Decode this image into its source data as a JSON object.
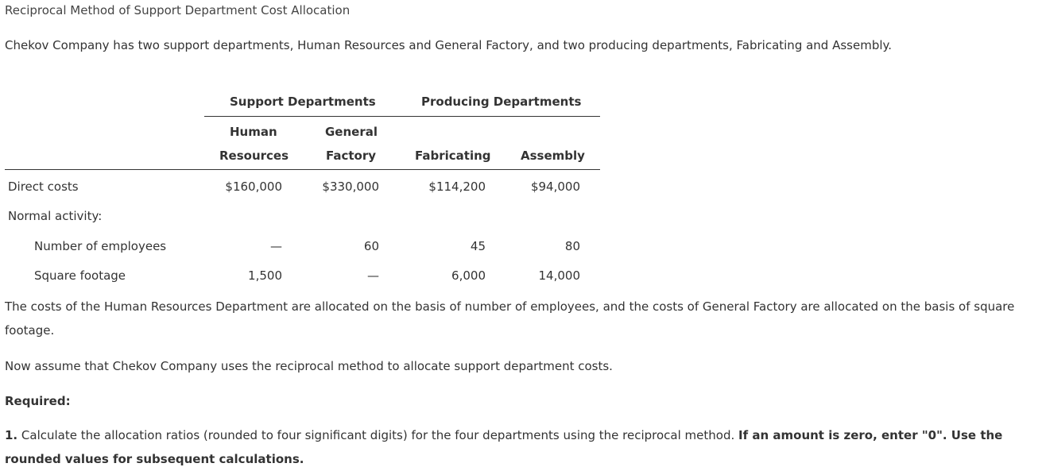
{
  "title": "Reciprocal Method of Support Department Cost Allocation",
  "intro": "Chekov Company has two support departments, Human Resources and General Factory, and two producing departments, Fabricating and Assembly.",
  "table": {
    "group_support": "Support Departments",
    "group_producing": "Producing Departments",
    "col_hr_line1": "Human",
    "col_hr_line2": "Resources",
    "col_gf_line1": "General",
    "col_gf_line2": "Factory",
    "col_fab": "Fabricating",
    "col_asm": "Assembly",
    "rows": {
      "direct_costs": {
        "label": "Direct costs",
        "hr": "$160,000",
        "gf": "$330,000",
        "fab": "$114,200",
        "asm": "$94,000"
      },
      "normal_activity": {
        "label": "Normal activity:"
      },
      "employees": {
        "label": "Number of employees",
        "hr": "—",
        "gf": "60",
        "fab": "45",
        "asm": "80"
      },
      "square_footage": {
        "label": "Square footage",
        "hr": "1,500",
        "gf": "—",
        "fab": "6,000",
        "asm": "14,000"
      }
    }
  },
  "paragraph_basis": "The costs of the Human Resources Department are allocated on the basis of number of employees, and the costs of General Factory are allocated on the basis of square footage.",
  "paragraph_assume": "Now assume that Chekov Company uses the reciprocal method to allocate support department costs.",
  "required_label": "Required:",
  "requirement": {
    "number": "1.",
    "text": " Calculate the allocation ratios (rounded to four significant digits) for the four departments using the reciprocal method. ",
    "bold_text": "If an amount is zero, enter \"0\". Use the rounded values for subsequent calculations."
  }
}
